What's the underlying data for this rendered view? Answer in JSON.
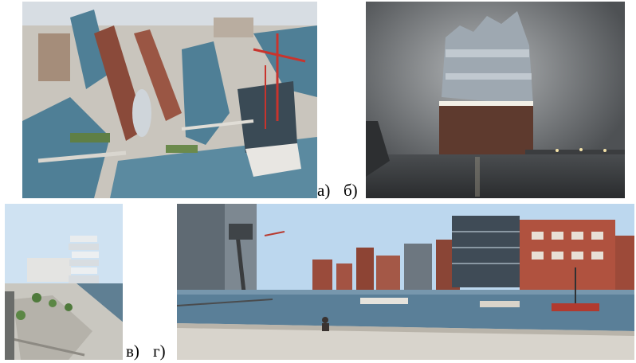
{
  "figure": {
    "captions": {
      "a": "а)",
      "b": "б)",
      "v": "в)",
      "g": "г)"
    }
  },
  "colors": {
    "water_aerial": "#4f7f96",
    "brick": "#8a4a3a",
    "night_sky": "#5a5d60",
    "clear_sky": "#bcd7ee",
    "canal_water": "#5a7f98"
  }
}
